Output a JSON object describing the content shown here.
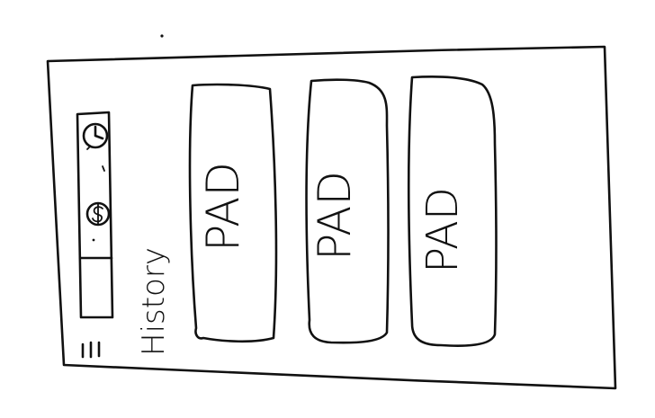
{
  "colors": {
    "ink": "#111111",
    "paper": "#ffffff"
  },
  "sidebar": {
    "icons": [
      "clock-icon",
      "dollar-icon"
    ],
    "menu_icon": "hamburger-menu-icon"
  },
  "history": {
    "label": "History"
  },
  "cards": [
    {
      "label": "PAD"
    },
    {
      "label": "PAD"
    },
    {
      "label": "PAD"
    }
  ]
}
